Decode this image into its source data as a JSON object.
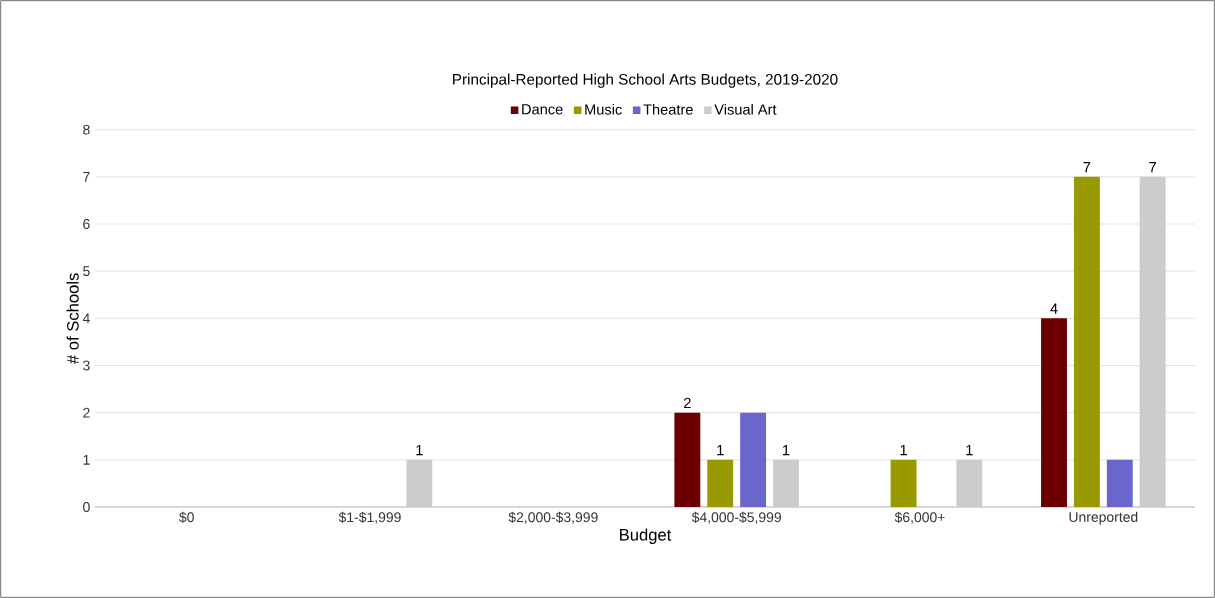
{
  "chart_data": {
    "type": "bar",
    "title": "Principal-Reported High School Arts Budgets, 2019-2020",
    "xlabel": "Budget",
    "ylabel": "# of Schools",
    "categories": [
      "$0",
      "$1-$1,999",
      "$2,000-$3,999",
      "$4,000-$5,999",
      "$6,000+",
      "Unreported"
    ],
    "series": [
      {
        "name": "Dance",
        "color": "#6b0000",
        "values": [
          0,
          0,
          0,
          2,
          0,
          4
        ],
        "value_labels": [
          null,
          null,
          null,
          "2",
          null,
          "4"
        ]
      },
      {
        "name": "Music",
        "color": "#999900",
        "values": [
          0,
          0,
          0,
          1,
          1,
          7
        ],
        "value_labels": [
          null,
          null,
          null,
          "1",
          "1",
          "7"
        ]
      },
      {
        "name": "Theatre",
        "color": "#6b66cc",
        "values": [
          0,
          0,
          0,
          2,
          0,
          1
        ]
      },
      {
        "name": "Visual Art",
        "color": "#cccccc",
        "values": [
          0,
          1,
          0,
          1,
          1,
          7
        ],
        "value_labels": [
          null,
          "1",
          null,
          "1",
          "1",
          "7"
        ]
      }
    ],
    "ylim": [
      0,
      8
    ],
    "yticks": [
      0,
      1,
      2,
      3,
      4,
      5,
      6,
      7,
      8
    ],
    "grid": "y",
    "legend": "top"
  }
}
